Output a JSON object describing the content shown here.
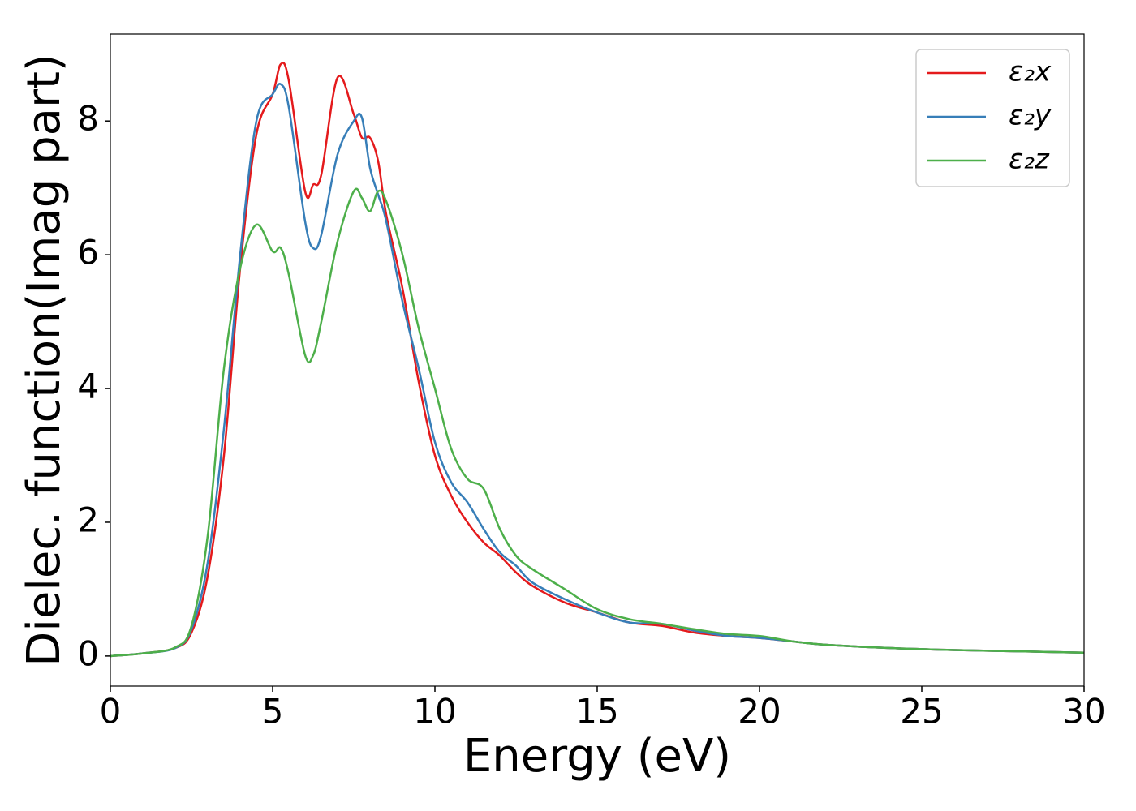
{
  "chart_data": {
    "type": "line",
    "xlabel": "Energy (eV)",
    "ylabel": "Dielec. function(Imag part)",
    "x": [
      0,
      1,
      2,
      2.5,
      3,
      3.5,
      4,
      4.5,
      5,
      5.25,
      5.5,
      6,
      6.25,
      6.5,
      7,
      7.5,
      7.75,
      8,
      8.25,
      8.5,
      9,
      9.5,
      10,
      10.5,
      11,
      11.5,
      12,
      12.5,
      13,
      14,
      15,
      16,
      17,
      18,
      19,
      20,
      21,
      22,
      24,
      26,
      28,
      30
    ],
    "series": [
      {
        "name": "ε₂x",
        "color": "#e41a1c",
        "values": [
          0,
          0.04,
          0.12,
          0.35,
          1.2,
          3.0,
          5.8,
          7.8,
          8.4,
          8.85,
          8.6,
          6.95,
          7.05,
          7.2,
          8.65,
          8.1,
          7.75,
          7.75,
          7.4,
          6.6,
          5.5,
          4.1,
          3.0,
          2.4,
          2.0,
          1.7,
          1.5,
          1.25,
          1.05,
          0.8,
          0.65,
          0.5,
          0.45,
          0.35,
          0.3,
          0.27,
          0.22,
          0.17,
          0.12,
          0.09,
          0.07,
          0.05
        ]
      },
      {
        "name": "ε₂y",
        "color": "#377eb8",
        "values": [
          0,
          0.04,
          0.12,
          0.4,
          1.4,
          3.4,
          6.0,
          8.0,
          8.4,
          8.55,
          8.2,
          6.5,
          6.1,
          6.3,
          7.5,
          8.0,
          8.05,
          7.3,
          6.9,
          6.5,
          5.3,
          4.3,
          3.2,
          2.6,
          2.3,
          1.9,
          1.55,
          1.35,
          1.1,
          0.85,
          0.65,
          0.5,
          0.48,
          0.38,
          0.3,
          0.27,
          0.22,
          0.17,
          0.12,
          0.09,
          0.07,
          0.05
        ]
      },
      {
        "name": "ε₂z",
        "color": "#4daf4a",
        "values": [
          0,
          0.04,
          0.13,
          0.45,
          1.8,
          4.3,
          5.8,
          6.45,
          6.05,
          6.1,
          5.7,
          4.5,
          4.5,
          5.0,
          6.2,
          6.95,
          6.85,
          6.65,
          6.95,
          6.8,
          6.0,
          4.9,
          4.0,
          3.1,
          2.65,
          2.5,
          1.9,
          1.5,
          1.3,
          1.0,
          0.7,
          0.55,
          0.48,
          0.4,
          0.33,
          0.3,
          0.22,
          0.17,
          0.12,
          0.09,
          0.07,
          0.05
        ]
      }
    ],
    "xlim": [
      0,
      30
    ],
    "xticks": [
      0,
      5,
      10,
      15,
      20,
      25,
      30
    ],
    "ylim": [
      -0.45,
      9.3
    ],
    "yticks": [
      0,
      2,
      4,
      6,
      8
    ],
    "legend": "upper right"
  }
}
